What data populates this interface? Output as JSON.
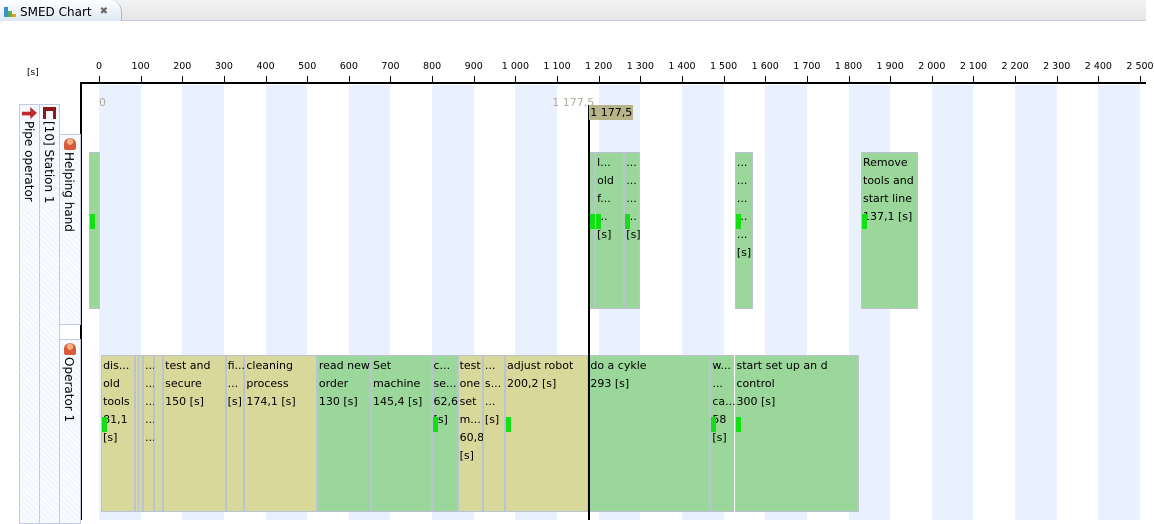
{
  "tab": {
    "title": "SMED Chart",
    "close_icon": "close-icon"
  },
  "axis": {
    "unit": "[s]",
    "min": 0,
    "max": 2500,
    "step": 100
  },
  "tree": {
    "operator_type": "Pipe operator",
    "station": "[10] Station 1",
    "rows": [
      "Helping hand",
      "Operator 1"
    ]
  },
  "marker": {
    "value": 1177.5,
    "label": "1 177,5",
    "ghost_label": "1 177,5",
    "origin_label": "0"
  },
  "colors": {
    "internal": "#d8d89b",
    "external": "#9bd79b",
    "band": "#e8f1fd",
    "marker_flag": "#12e012"
  },
  "chart_data": {
    "type": "gantt",
    "xlabel": "[s]",
    "xlim": [
      0,
      2500
    ],
    "rows": [
      {
        "name": "Helping hand",
        "tasks": [
          {
            "start": -24,
            "duration": 26,
            "kind": "g",
            "lines": [],
            "flag": true
          },
          {
            "start": 1177.5,
            "duration": 14,
            "kind": "g",
            "lines": [],
            "flag": true
          },
          {
            "start": 1191.5,
            "duration": 70,
            "kind": "g",
            "lines": [
              "l...",
              "old",
              "f...",
              "...",
              "[s]"
            ],
            "flag": true
          },
          {
            "start": 1261.5,
            "duration": 38,
            "kind": "g",
            "lines": [
              "...",
              "...",
              "...",
              "...",
              "[s]"
            ],
            "flag": true
          },
          {
            "start": 1527,
            "duration": 43,
            "kind": "g",
            "lines": [
              "...",
              "...",
              "...",
              "...",
              "...",
              "[s]"
            ],
            "flag": true
          },
          {
            "start": 1830,
            "duration": 137.1,
            "kind": "g",
            "lines": [
              "Remove",
              "tools and",
              "start line",
              "137,1 [s]"
            ],
            "flag": true
          }
        ]
      },
      {
        "name": "Operator 1",
        "tasks": [
          {
            "start": 5,
            "duration": 81.1,
            "kind": "y",
            "lines": [
              "dis...",
              "old",
              "tools",
              "81,1",
              "[s]"
            ],
            "flag": true
          },
          {
            "start": 86.1,
            "duration": 7,
            "kind": "y",
            "lines": [],
            "flag": false
          },
          {
            "start": 93.1,
            "duration": 13,
            "kind": "y",
            "lines": [],
            "flag": false
          },
          {
            "start": 106.1,
            "duration": 26,
            "kind": "y",
            "lines": [
              "...",
              "...",
              "...",
              "...",
              "..."
            ],
            "flag": false
          },
          {
            "start": 132.1,
            "duration": 22,
            "kind": "y",
            "lines": [],
            "flag": false
          },
          {
            "start": 154.1,
            "duration": 150,
            "kind": "y",
            "lines": [
              "test and",
              "secure",
              "150 [s]"
            ],
            "flag": false
          },
          {
            "start": 304.1,
            "duration": 45,
            "kind": "y",
            "lines": [
              "fi...",
              "...",
              "[s]"
            ],
            "flag": false
          },
          {
            "start": 349.1,
            "duration": 174.1,
            "kind": "y",
            "lines": [
              "cleaning",
              "process",
              "174,1 [s]"
            ],
            "flag": false
          },
          {
            "start": 523.2,
            "duration": 130,
            "kind": "g",
            "lines": [
              "read new",
              "order",
              "130 [s]"
            ],
            "flag": false
          },
          {
            "start": 653.2,
            "duration": 145.4,
            "kind": "g",
            "lines": [
              "Set",
              "machine",
              "145,4 [s]"
            ],
            "flag": false
          },
          {
            "start": 798.6,
            "duration": 62.6,
            "kind": "g",
            "lines": [
              "c...",
              "se...",
              "62,6",
              "[s]"
            ],
            "flag": true
          },
          {
            "start": 861.2,
            "duration": 60.8,
            "kind": "y",
            "lines": [
              "test",
              "one",
              "set",
              "m...",
              "60,8",
              "[s]"
            ],
            "flag": false
          },
          {
            "start": 922,
            "duration": 53,
            "kind": "y",
            "lines": [
              "...",
              "s...",
              "...",
              "[s]"
            ],
            "flag": false
          },
          {
            "start": 975,
            "duration": 200.2,
            "kind": "y",
            "lines": [
              "adjust robot",
              "200,2 [s]"
            ],
            "flag": true
          },
          {
            "start": 1175.2,
            "duration": 293,
            "kind": "g",
            "lines": [
              "do a cykle",
              "293 [s]"
            ],
            "flag": false
          },
          {
            "start": 1468.2,
            "duration": 58,
            "kind": "g",
            "lines": [
              "w...",
              "...",
              "ca...",
              "58",
              "[s]"
            ],
            "flag": true
          },
          {
            "start": 1526.2,
            "duration": 300,
            "kind": "g",
            "lines": [
              "start set up an d",
              "control",
              "300 [s]"
            ],
            "flag": true
          }
        ]
      }
    ]
  }
}
